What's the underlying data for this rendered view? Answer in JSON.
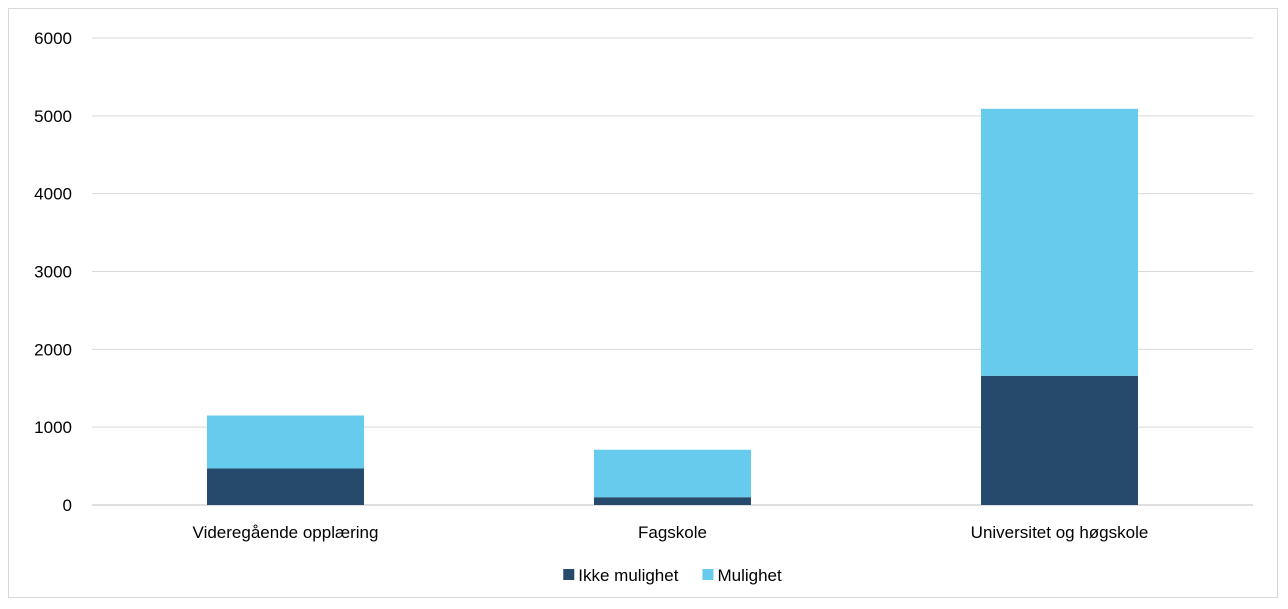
{
  "chart_data": {
    "type": "bar",
    "stacked": true,
    "categories": [
      "Videregående opplæring",
      "Fagskole",
      "Universitet og høgskole"
    ],
    "series": [
      {
        "name": "Ikke mulighet",
        "color": "#264a6b",
        "values": [
          470,
          100,
          1660
        ]
      },
      {
        "name": "Mulighet",
        "color": "#66cbed",
        "values": [
          680,
          610,
          3430
        ]
      }
    ],
    "ylim": [
      0,
      6000
    ],
    "yticks": [
      0,
      1000,
      2000,
      3000,
      4000,
      5000,
      6000
    ],
    "grid": true,
    "legend_position": "bottom",
    "title": "",
    "xlabel": "",
    "ylabel": ""
  }
}
